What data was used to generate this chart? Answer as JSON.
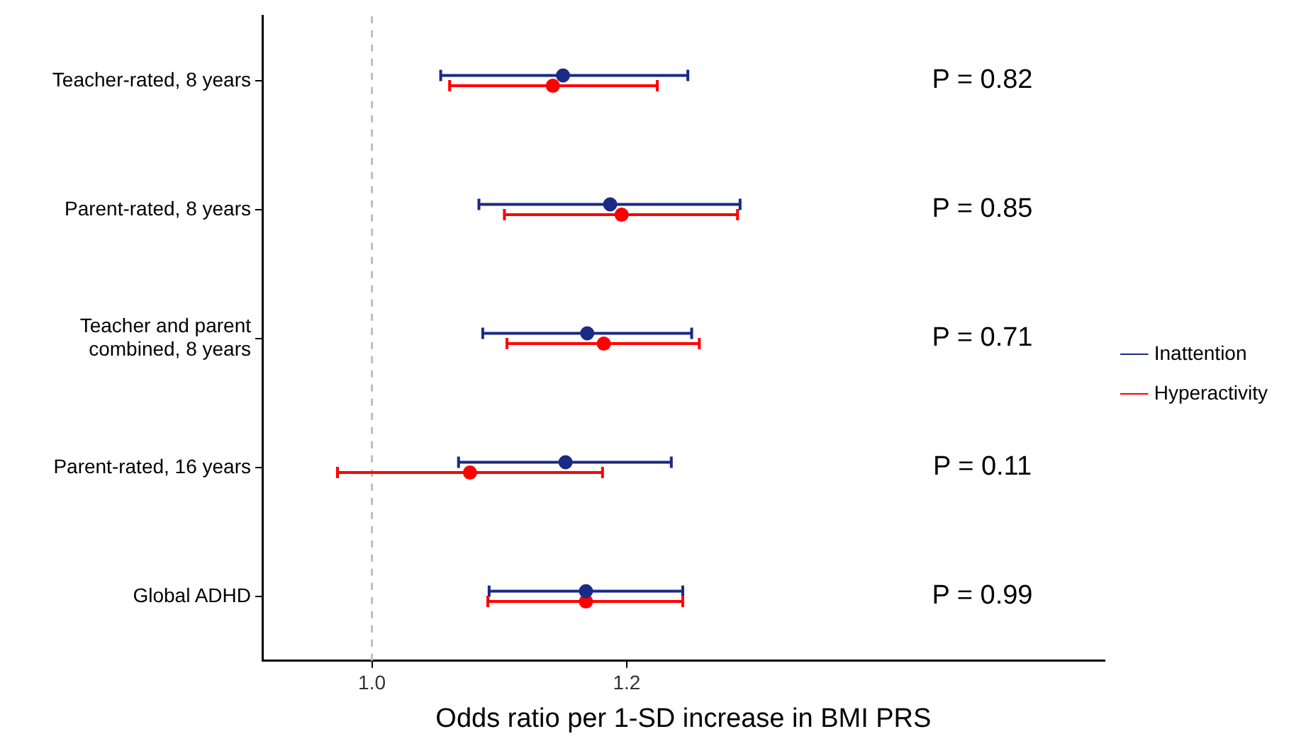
{
  "chart_data": {
    "type": "scatter",
    "orientation": "horizontal",
    "xlabel": "Odds ratio per 1-SD increase in BMI PRS",
    "categories": [
      "Teacher-rated, 8 years",
      "Parent-rated, 8 years",
      "Teacher and parent combined, 8 years",
      "Parent-rated, 16 years",
      "Global ADHD"
    ],
    "series": [
      {
        "name": "Inattention",
        "color": "#1b2a84",
        "values": [
          1.15,
          1.187,
          1.169,
          1.152,
          1.168
        ],
        "errors": [
          [
            1.054,
            1.248
          ],
          [
            1.084,
            1.289
          ],
          [
            1.087,
            1.251
          ],
          [
            1.068,
            1.235
          ],
          [
            1.092,
            1.244
          ]
        ]
      },
      {
        "name": "Hyperactivity",
        "color": "#ff0000",
        "values": [
          1.142,
          1.196,
          1.182,
          1.077,
          1.168
        ],
        "errors": [
          [
            1.061,
            1.224
          ],
          [
            1.104,
            1.287
          ],
          [
            1.106,
            1.257
          ],
          [
            0.973,
            1.181
          ],
          [
            1.091,
            1.244
          ]
        ]
      }
    ],
    "xlim": [
      0.914,
      1.575
    ],
    "xticks": [
      {
        "value": 1.0,
        "label": "1.0"
      },
      {
        "value": 1.2,
        "label": "1.2"
      }
    ],
    "ref_lines": [
      {
        "axis": "x",
        "value": 1.0,
        "color": "#bebebe",
        "line_style": "dashed"
      }
    ],
    "annotations": [
      "P = 0.82",
      "P = 0.85",
      "P = 0.71",
      "P = 0.11",
      "P = 0.99"
    ],
    "legend": "right",
    "marker": "circle",
    "grid": false
  }
}
